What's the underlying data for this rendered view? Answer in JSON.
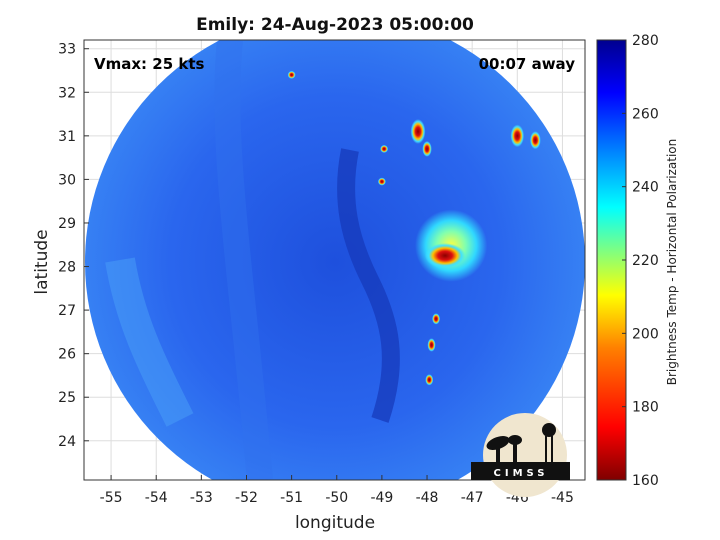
{
  "title": "Emily: 24-Aug-2023 05:00:00",
  "annotations": {
    "vmax": "Vmax: 25 kts",
    "time_away": "00:07 away"
  },
  "map": {
    "xlabel": "longitude",
    "ylabel": "latitude",
    "xlim": [
      -55.6,
      -44.5
    ],
    "ylim": [
      23.1,
      33.2
    ],
    "xticks": [
      "-55",
      "-54",
      "-53",
      "-52",
      "-51",
      "-50",
      "-49",
      "-48",
      "-47",
      "-46",
      "-45"
    ],
    "yticks": [
      "24",
      "25",
      "26",
      "27",
      "28",
      "29",
      "30",
      "31",
      "32",
      "33"
    ],
    "grid": true,
    "swath_center": [
      -50.0,
      28.1
    ],
    "cells": [
      {
        "lon": -47.6,
        "lat": 28.25,
        "size": 1.0,
        "kind": "core"
      },
      {
        "lon": -48.2,
        "lat": 31.1,
        "size": 0.55,
        "kind": "band"
      },
      {
        "lon": -48.0,
        "lat": 30.7,
        "size": 0.35,
        "kind": "band"
      },
      {
        "lon": -46.0,
        "lat": 31.0,
        "size": 0.5,
        "kind": "band"
      },
      {
        "lon": -45.6,
        "lat": 30.9,
        "size": 0.4,
        "kind": "band"
      },
      {
        "lon": -47.9,
        "lat": 26.2,
        "size": 0.3,
        "kind": "band"
      },
      {
        "lon": -47.8,
        "lat": 26.8,
        "size": 0.25,
        "kind": "band"
      },
      {
        "lon": -47.95,
        "lat": 25.4,
        "size": 0.25,
        "kind": "band"
      },
      {
        "lon": -48.95,
        "lat": 30.7,
        "size": 0.15,
        "kind": "small"
      },
      {
        "lon": -49.0,
        "lat": 29.95,
        "size": 0.15,
        "kind": "small"
      },
      {
        "lon": -51.0,
        "lat": 32.4,
        "size": 0.15,
        "kind": "small"
      }
    ]
  },
  "colorbar": {
    "label": "Brightness Temp - Horizontal Polarization",
    "min": 160,
    "max": 280,
    "ticks": [
      "280",
      "260",
      "240",
      "220",
      "200",
      "180",
      "160"
    ],
    "colormap": "jet",
    "colors": [
      "#7f0000",
      "#ff0000",
      "#ff8000",
      "#ffff00",
      "#80ff80",
      "#00ffff",
      "#0080ff",
      "#0000ff",
      "#00008f"
    ]
  },
  "logo": {
    "text": "CIMSS"
  }
}
